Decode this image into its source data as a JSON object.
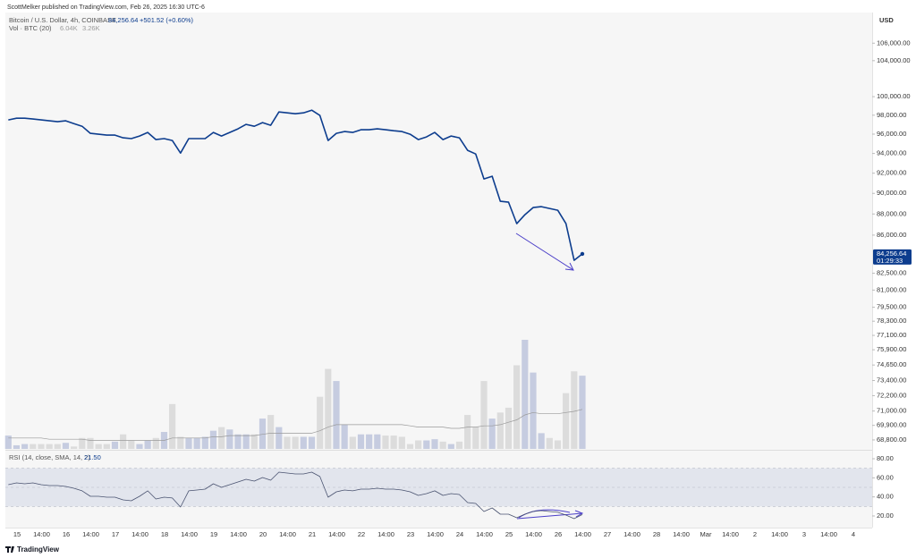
{
  "header": {
    "publisher": "ScottMelker published on TradingView.com, Feb 26, 2025 16:30 UTC-6",
    "symbol": "Bitcoin / U.S. Dollar, 4h, COINBASE",
    "last": "84,256.64",
    "change": "+501.52 (+0.60%)",
    "volume_title": "Vol · BTC (20)",
    "volume_value": "6.04K",
    "volume_ma": "3.26K",
    "rsi_title": "RSI (14, close, SMA, 14, 2)",
    "rsi_value": "21.50",
    "currency": "USD",
    "price_tag": "84,256.64",
    "countdown": "01:29:33"
  },
  "footer": {
    "brand": "TradingView"
  },
  "chart_data": [
    {
      "type": "line",
      "color": "#0d3d8e",
      "log": true,
      "ylim": [
        68130,
        109600
      ],
      "yticks": [
        {
          "value": 106000,
          "label": "106,000.00"
        },
        {
          "value": 104000,
          "label": "104,000.00"
        },
        {
          "value": 100000,
          "label": "100,000.00"
        },
        {
          "value": 98000,
          "label": "98,000.00"
        },
        {
          "value": 96000,
          "label": "96,000.00"
        },
        {
          "value": 94000,
          "label": "94,000.00"
        },
        {
          "value": 92000,
          "label": "92,000.00"
        },
        {
          "value": 90000,
          "label": "90,000.00"
        },
        {
          "value": 88000,
          "label": "88,000.00"
        },
        {
          "value": 86000,
          "label": "86,000.00"
        },
        {
          "value": 82500,
          "label": "82,500.00"
        },
        {
          "value": 81000,
          "label": "81,000.00"
        },
        {
          "value": 79500,
          "label": "79,500.00"
        },
        {
          "value": 78300,
          "label": "78,300.00"
        },
        {
          "value": 77100,
          "label": "77,100.00"
        },
        {
          "value": 75900,
          "label": "75,900.00"
        },
        {
          "value": 74650,
          "label": "74,650.00"
        },
        {
          "value": 73400,
          "label": "73,400.00"
        },
        {
          "value": 72200,
          "label": "72,200.00"
        },
        {
          "value": 71000,
          "label": "71,000.00"
        },
        {
          "value": 69900,
          "label": "69,900.00"
        },
        {
          "value": 68800,
          "label": "68,800.00"
        }
      ],
      "xtick_labels": [
        "15",
        "14:00",
        "16",
        "14:00",
        "17",
        "14:00",
        "18",
        "14:00",
        "19",
        "14:00",
        "20",
        "14:00",
        "21",
        "14:00",
        "22",
        "14:00",
        "23",
        "14:00",
        "24",
        "14:00",
        "25",
        "14:00",
        "26",
        "14:00",
        "27",
        "14:00",
        "28",
        "14:00",
        "Mar",
        "14:00",
        "2",
        "14:00",
        "3",
        "14:00",
        "4"
      ],
      "values": [
        97500,
        97680,
        97680,
        97590,
        97500,
        97400,
        97310,
        97400,
        97110,
        96830,
        96080,
        95990,
        95900,
        95900,
        95620,
        95530,
        95800,
        96180,
        95430,
        95530,
        95340,
        94040,
        95530,
        95530,
        95530,
        96180,
        95800,
        96180,
        96550,
        97020,
        96830,
        97210,
        96930,
        98350,
        98250,
        98160,
        98250,
        98540,
        97970,
        95340,
        96080,
        96270,
        96180,
        96460,
        96460,
        96550,
        96460,
        96360,
        96270,
        95990,
        95430,
        95710,
        96180,
        95430,
        95800,
        95620,
        94320,
        93950,
        91430,
        91690,
        89230,
        89140,
        87080,
        87930,
        88620,
        88710,
        88530,
        88360,
        87080,
        83670,
        84256.64
      ]
    },
    {
      "type": "bar",
      "up_color": "#c6cce0",
      "down_color": "#dcdcdc",
      "ma_color": "#9a9a9a",
      "ylim": [
        0,
        36
      ],
      "values": [
        1.1,
        0.3,
        0.4,
        0.4,
        0.4,
        0.4,
        0.4,
        0.5,
        0.2,
        0.9,
        0.9,
        0.4,
        0.4,
        0.6,
        1.2,
        0.7,
        0.4,
        0.7,
        0.9,
        1.4,
        3.7,
        1.0,
        0.9,
        0.9,
        1.0,
        1.5,
        1.8,
        1.6,
        1.2,
        1.2,
        1.2,
        2.5,
        2.8,
        1.8,
        1.0,
        1.0,
        1.0,
        1.0,
        4.3,
        6.6,
        5.6,
        2.0,
        1.0,
        1.2,
        1.2,
        1.2,
        1.1,
        1.1,
        1.0,
        0.4,
        0.7,
        0.7,
        0.8,
        0.6,
        0.4,
        0.6,
        2.8,
        1.8,
        5.6,
        2.5,
        3.0,
        3.4,
        6.9,
        9.0,
        6.3,
        1.3,
        0.9,
        0.7,
        4.6,
        6.4,
        6.04
      ],
      "ma_values": [
        0.9,
        0.9,
        0.9,
        0.9,
        0.9,
        0.8,
        0.8,
        0.8,
        0.8,
        0.8,
        0.7,
        0.7,
        0.7,
        0.7,
        0.7,
        0.7,
        0.7,
        0.7,
        0.7,
        0.7,
        0.9,
        0.9,
        0.9,
        0.9,
        0.9,
        1.0,
        1.0,
        1.1,
        1.1,
        1.1,
        1.1,
        1.2,
        1.3,
        1.3,
        1.3,
        1.3,
        1.3,
        1.3,
        1.5,
        1.8,
        2.0,
        2.0,
        2.0,
        2.0,
        2.0,
        2.0,
        2.0,
        2.0,
        2.0,
        1.9,
        1.8,
        1.8,
        1.8,
        1.8,
        1.7,
        1.7,
        1.8,
        1.8,
        1.9,
        1.9,
        2.0,
        2.2,
        2.4,
        2.8,
        3.0,
        2.9,
        2.9,
        2.9,
        3.0,
        3.1,
        3.26
      ]
    },
    {
      "type": "line",
      "color": "#4a5370",
      "ylim": [
        7.8,
        87.5
      ],
      "band": [
        30,
        70
      ],
      "midline": 50,
      "yticks": [
        {
          "value": 80,
          "label": "80.00"
        },
        {
          "value": 60,
          "label": "60.00"
        },
        {
          "value": 40,
          "label": "40.00"
        },
        {
          "value": 20,
          "label": "20.00"
        }
      ],
      "values": [
        52.8,
        54.7,
        53.7,
        54.7,
        52.8,
        51.9,
        51.9,
        50.9,
        49.1,
        46.3,
        40.6,
        40.6,
        39.7,
        39.7,
        36.9,
        35.9,
        40.6,
        46.3,
        37.8,
        39.7,
        38.8,
        29.4,
        46.3,
        47.2,
        48.1,
        53.7,
        50,
        52.8,
        55.6,
        58.4,
        56.6,
        60.3,
        57.5,
        65.9,
        65,
        64.1,
        64.1,
        65.9,
        61.3,
        39.7,
        45.3,
        47.2,
        46.3,
        48.1,
        48.1,
        49.1,
        48.1,
        48.1,
        47.2,
        45.3,
        41.6,
        43.4,
        46.3,
        41.6,
        43.4,
        42.5,
        34.1,
        33.1,
        24.7,
        28.4,
        21.9,
        21.9,
        18.1,
        21.9,
        24.7,
        25.6,
        24.7,
        23.8,
        20.9,
        17.2,
        21.5
      ]
    }
  ]
}
